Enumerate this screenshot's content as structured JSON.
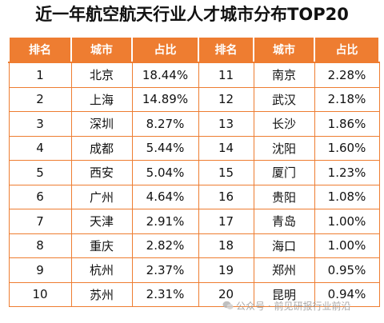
{
  "title": "近一年航空航天行业人才城市分布TOP20",
  "watermark": "公众号 · 前见研报行业前沿",
  "chart_data": {
    "type": "table",
    "columns": [
      "排名",
      "城市",
      "占比",
      "排名",
      "城市",
      "占比"
    ],
    "rows": [
      {
        "rank": "1",
        "city": "北京",
        "share": "18.44%"
      },
      {
        "rank": "2",
        "city": "上海",
        "share": "14.89%"
      },
      {
        "rank": "3",
        "city": "深圳",
        "share": "8.27%"
      },
      {
        "rank": "4",
        "city": "成都",
        "share": "5.44%"
      },
      {
        "rank": "5",
        "city": "西安",
        "share": "5.04%"
      },
      {
        "rank": "6",
        "city": "广州",
        "share": "4.64%"
      },
      {
        "rank": "7",
        "city": "天津",
        "share": "2.91%"
      },
      {
        "rank": "8",
        "city": "重庆",
        "share": "2.82%"
      },
      {
        "rank": "9",
        "city": "杭州",
        "share": "2.37%"
      },
      {
        "rank": "10",
        "city": "苏州",
        "share": "2.31%"
      },
      {
        "rank": "11",
        "city": "南京",
        "share": "2.28%"
      },
      {
        "rank": "12",
        "city": "武汉",
        "share": "2.18%"
      },
      {
        "rank": "13",
        "city": "长沙",
        "share": "1.86%"
      },
      {
        "rank": "14",
        "city": "沈阳",
        "share": "1.60%"
      },
      {
        "rank": "15",
        "city": "厦门",
        "share": "1.23%"
      },
      {
        "rank": "16",
        "city": "贵阳",
        "share": "1.08%"
      },
      {
        "rank": "17",
        "city": "青岛",
        "share": "1.00%"
      },
      {
        "rank": "18",
        "city": "海口",
        "share": "1.00%"
      },
      {
        "rank": "19",
        "city": "郑州",
        "share": "0.95%"
      },
      {
        "rank": "20",
        "city": "昆明",
        "share": "0.94%"
      }
    ],
    "header_color": "#ee7d31",
    "border_color": "#ee7d31"
  }
}
